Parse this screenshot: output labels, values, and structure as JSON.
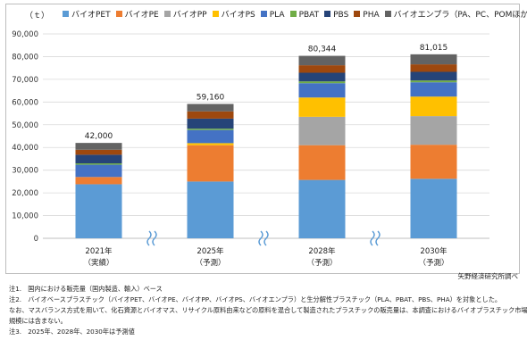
{
  "unit_label": "（ｔ）",
  "source": "矢野経済研究所調べ",
  "notes": [
    "注1.　国内における販売量（国内製造、輸入）ベース",
    "注2.　バイオベースプラスチック（バイオPET、バイオPE、バイオPP、バイオPS、バイオエンプラ）と生分解性プラスチック（PLA、PBAT、PBS、PHA）を対象とした。",
    "なお、マスバランス方式を用いて、化石資源とバイオマス、リサイクル原料由来などの原料を混合して製造されたプラスチックの販売量は、本調査におけるバイオプラスチック市場",
    "規模には含まない。",
    "注3.　2025年、2028年、2030年は予測値"
  ],
  "chart_data": {
    "type": "bar",
    "stacked": true,
    "categories": [
      "2021年",
      "2025年",
      "2028年",
      "2030年"
    ],
    "category_sublabels": [
      "（実績）",
      "（予測）",
      "（予測）",
      "（予測）"
    ],
    "totals": [
      "42,000",
      "59,160",
      "80,344",
      "81,015"
    ],
    "ylim": [
      0,
      90000
    ],
    "yticks": [
      "0",
      "10,000",
      "20,000",
      "30,000",
      "40,000",
      "50,000",
      "60,000",
      "70,000",
      "80,000",
      "90,000"
    ],
    "grid": true,
    "legend_position": "top",
    "axis_break_marks": true,
    "series": [
      {
        "name": "バイオPET",
        "color": "#5b9bd5",
        "values": [
          23800,
          25000,
          25700,
          26200
        ]
      },
      {
        "name": "バイオPE",
        "color": "#ed7d31",
        "values": [
          3200,
          16000,
          15300,
          15000
        ]
      },
      {
        "name": "バイオPP",
        "color": "#a5a5a5",
        "values": [
          0,
          0,
          12500,
          12600
        ]
      },
      {
        "name": "バイオPS",
        "color": "#ffc000",
        "values": [
          0,
          900,
          8500,
          8600
        ]
      },
      {
        "name": "PLA",
        "color": "#4472c4",
        "values": [
          5400,
          5800,
          6300,
          6300
        ]
      },
      {
        "name": "PBAT",
        "color": "#70ad47",
        "values": [
          600,
          600,
          800,
          800
        ]
      },
      {
        "name": "PBS",
        "color": "#264478",
        "values": [
          3800,
          4400,
          3800,
          3800
        ]
      },
      {
        "name": "PHA",
        "color": "#9e480e",
        "values": [
          2200,
          3200,
          3300,
          3300
        ]
      },
      {
        "name": "バイオエンプラ（PA、PC、POMほか）",
        "color": "#636363",
        "values": [
          3000,
          3260,
          4144,
          4415
        ]
      }
    ]
  }
}
